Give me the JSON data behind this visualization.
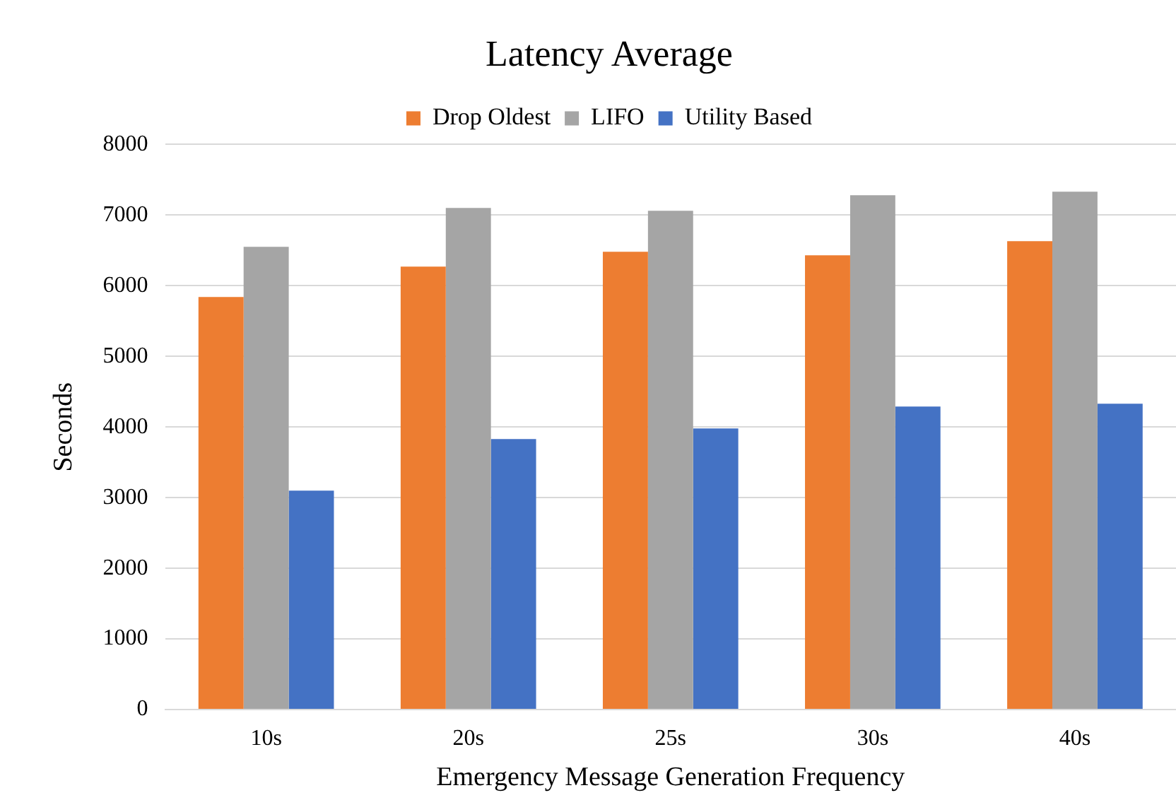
{
  "chart_data": {
    "type": "bar",
    "title": "Latency Average",
    "xlabel": "Emergency Message Generation Frequency",
    "ylabel": "Seconds",
    "categories": [
      "10s",
      "20s",
      "25s",
      "30s",
      "40s"
    ],
    "series": [
      {
        "name": "Drop Oldest",
        "color": "#ed7d31",
        "values": [
          5840,
          6270,
          6480,
          6430,
          6630
        ]
      },
      {
        "name": "LIFO",
        "color": "#a5a5a5",
        "values": [
          6550,
          7100,
          7060,
          7280,
          7330
        ]
      },
      {
        "name": "Utility Based",
        "color": "#4472c4",
        "values": [
          3100,
          3830,
          3980,
          4290,
          4330
        ]
      }
    ],
    "ylim": [
      0,
      8000
    ],
    "yticks": [
      0,
      1000,
      2000,
      3000,
      4000,
      5000,
      6000,
      7000,
      8000
    ],
    "grid": "y",
    "legend": "top"
  }
}
